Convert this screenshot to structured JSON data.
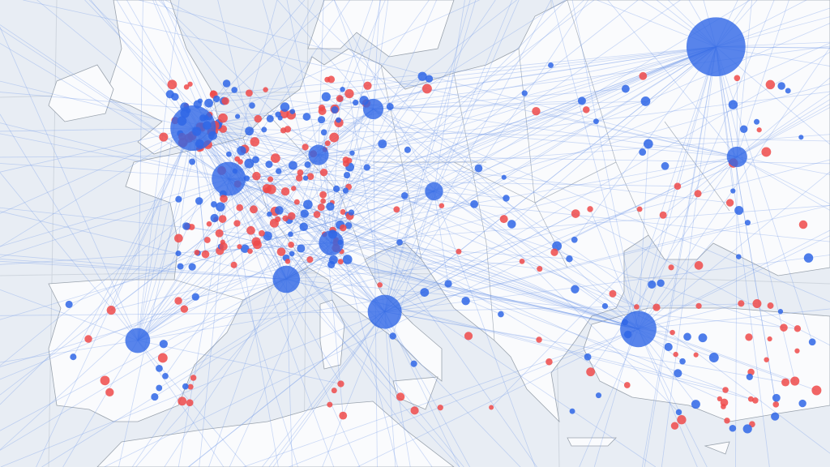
{
  "map": {
    "sea_color": "#e8edf4",
    "land_color": "#fafbfd",
    "coastline_color": "#9aa3ae",
    "route_color": "#6f98e8",
    "hub_color": "#2f66e6",
    "blue_dot_color": "#2f66e6",
    "red_dot_color": "#ee4a4a"
  },
  "hubs": [
    {
      "lon": -0.1,
      "lat": 51.5,
      "size": 1.0
    },
    {
      "lon": 2.35,
      "lat": 48.85,
      "size": 0.75
    },
    {
      "lon": 37.6,
      "lat": 55.75,
      "size": 1.3
    },
    {
      "lon": 29.0,
      "lat": 41.0,
      "size": 0.8
    },
    {
      "lon": -3.7,
      "lat": 40.4,
      "size": 0.55
    },
    {
      "lon": 9.2,
      "lat": 45.5,
      "size": 0.55
    },
    {
      "lon": 12.5,
      "lat": 41.9,
      "size": 0.75
    },
    {
      "lon": 6.1,
      "lat": 43.6,
      "size": 0.6
    },
    {
      "lon": 8.6,
      "lat": 50.1,
      "size": 0.45
    },
    {
      "lon": 12.6,
      "lat": 52.5,
      "size": 0.45
    },
    {
      "lon": 16.4,
      "lat": 48.2,
      "size": 0.4
    },
    {
      "lon": 37.6,
      "lat": 50.0,
      "size": 0.45
    }
  ]
}
